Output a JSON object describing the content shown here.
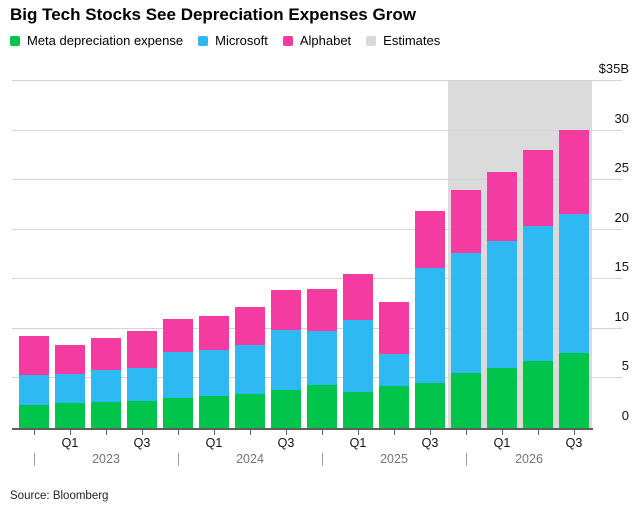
{
  "title": "Big Tech Stocks See Depreciation Expenses Grow",
  "source": "Source: Bloomberg",
  "legend": [
    {
      "label": "Meta depreciation expense",
      "color": "#00C54A"
    },
    {
      "label": "Microsoft",
      "color": "#2EB9F2"
    },
    {
      "label": "Alphabet",
      "color": "#F43BA2"
    },
    {
      "label": "Estimates",
      "color": "#D9D9D9"
    }
  ],
  "chart_data": {
    "type": "bar",
    "stacked": true,
    "units": "USD billions",
    "title": "Big Tech Stocks See Depreciation Expenses Grow",
    "categories": [
      "Q4 2022",
      "Q1 2023",
      "Q2 2023",
      "Q3 2023",
      "Q4 2023",
      "Q1 2024",
      "Q2 2024",
      "Q3 2024",
      "Q4 2024",
      "Q1 2025",
      "Q2 2025",
      "Q3 2025",
      "Q4 2025",
      "Q1 2026",
      "Q2 2026",
      "Q3 2026"
    ],
    "series": [
      {
        "name": "Meta depreciation expense",
        "color": "#00C54A",
        "values": [
          2.35,
          2.55,
          2.6,
          2.75,
          3.0,
          3.2,
          3.45,
          3.8,
          4.3,
          3.6,
          4.2,
          4.5,
          5.5,
          6.1,
          6.8,
          7.55
        ]
      },
      {
        "name": "Microsoft",
        "color": "#2EB9F2",
        "values": [
          2.95,
          2.85,
          3.25,
          3.35,
          4.7,
          4.7,
          4.95,
          6.1,
          5.5,
          7.3,
          3.3,
          11.65,
          12.15,
          12.75,
          13.55,
          14.05
        ]
      },
      {
        "name": "Alphabet",
        "color": "#F43BA2",
        "values": [
          4.0,
          3.0,
          3.25,
          3.7,
          3.3,
          3.4,
          3.8,
          4.05,
          4.2,
          4.6,
          5.2,
          5.75,
          6.4,
          6.95,
          7.65,
          8.45
        ]
      }
    ],
    "estimates": {
      "label": "Estimates",
      "start_category": "Q4 2025",
      "start_index": 12,
      "band_color": "#DBDBDB"
    },
    "y_axis": {
      "ylim": [
        0,
        35
      ],
      "ticks": [
        0,
        5,
        10,
        15,
        20,
        25,
        30,
        35
      ],
      "tick_labels": [
        "0",
        "5",
        "10",
        "15",
        "20",
        "25",
        "30",
        "$35B"
      ],
      "grid": true,
      "side": "right"
    },
    "x_axis": {
      "quarter_ticks": [
        {
          "index": 1,
          "label": "Q1"
        },
        {
          "index": 3,
          "label": "Q3"
        },
        {
          "index": 5,
          "label": "Q1"
        },
        {
          "index": 7,
          "label": "Q3"
        },
        {
          "index": 9,
          "label": "Q1"
        },
        {
          "index": 11,
          "label": "Q3"
        },
        {
          "index": 13,
          "label": "Q1"
        },
        {
          "index": 15,
          "label": "Q3"
        }
      ],
      "year_groups": [
        {
          "label": "2023",
          "separator_index": 0
        },
        {
          "label": "2024",
          "separator_index": 4
        },
        {
          "label": "2025",
          "separator_index": 8
        },
        {
          "label": "2026",
          "separator_index": 12
        }
      ],
      "separator_glyph": "|"
    }
  },
  "colors": {
    "background": "#FFFFFF",
    "gridline": "#D4D4D4",
    "axis_line": "#5E5E5E",
    "tick": "#5E5E5E",
    "estimate_band": "#DBDBDB",
    "quarter_label": "#111111",
    "year_label": "#757575",
    "year_separator": "#9B9B9B",
    "y_label": "#111111"
  }
}
